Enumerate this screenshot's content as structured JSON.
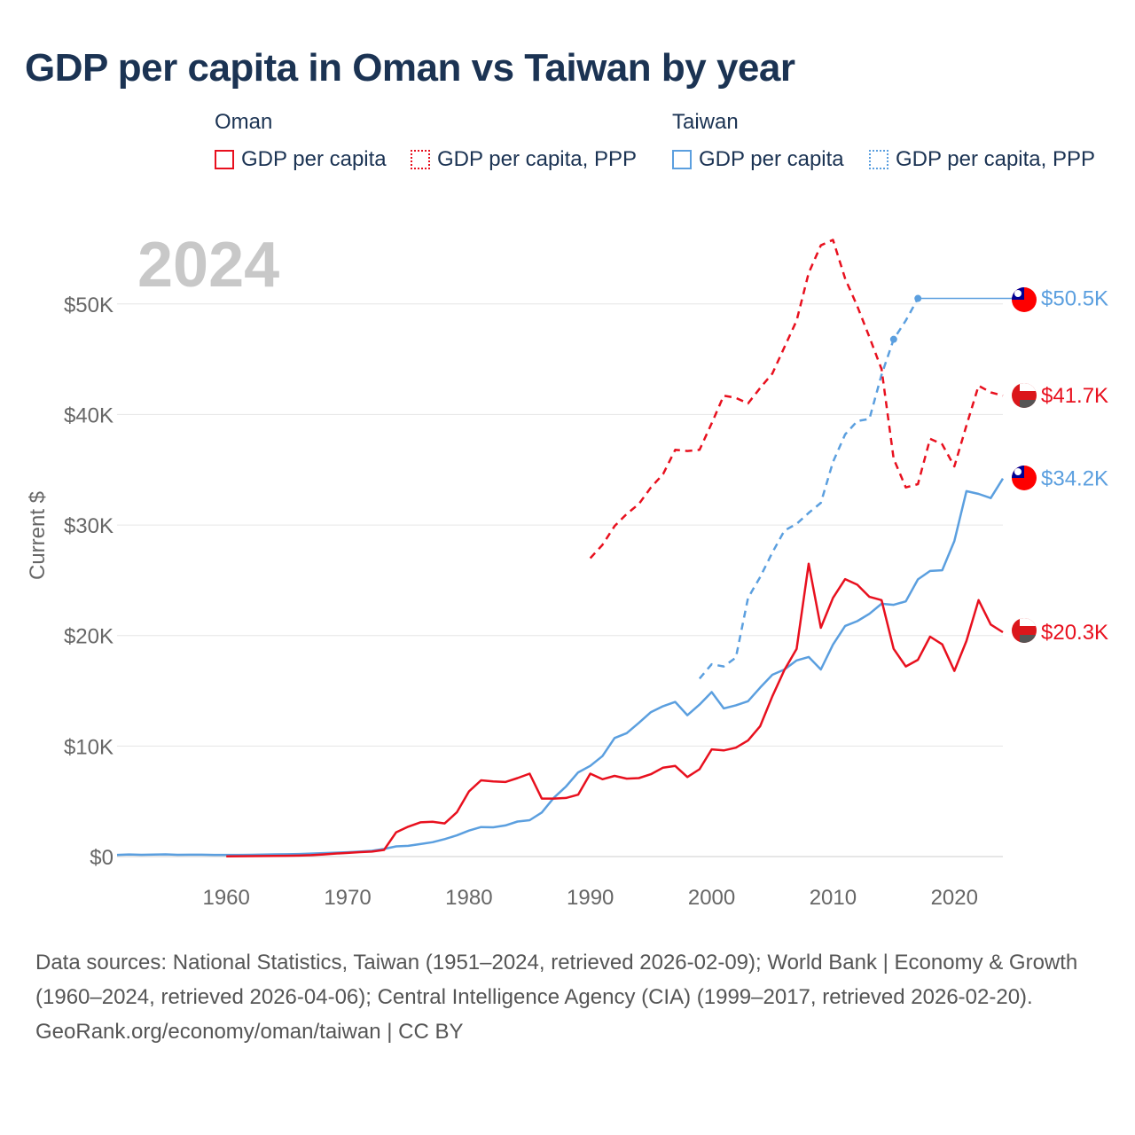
{
  "title": "GDP per capita in Oman vs Taiwan by year",
  "legend": {
    "groups": [
      {
        "name": "Oman",
        "color": "#e8101e",
        "items": [
          {
            "label": "GDP per capita",
            "style": "solid"
          },
          {
            "label": "GDP per capita, PPP",
            "style": "dotted"
          }
        ]
      },
      {
        "name": "Taiwan",
        "color": "#5b9fdf",
        "items": [
          {
            "label": "GDP per capita",
            "style": "solid"
          },
          {
            "label": "GDP per capita, PPP",
            "style": "dotted"
          }
        ]
      }
    ]
  },
  "year_label": "2024",
  "chart_data": {
    "type": "line",
    "title": "GDP per capita in Oman vs Taiwan by year",
    "xlabel": "",
    "ylabel": "Current $",
    "xlim": [
      1951,
      2024
    ],
    "ylim": [
      0,
      56000
    ],
    "x_ticks": [
      1960,
      1970,
      1980,
      1990,
      2000,
      2010,
      2020
    ],
    "x_tick_labels": [
      "1960",
      "1970",
      "1980",
      "1990",
      "2000",
      "2010",
      "2020"
    ],
    "y_ticks": [
      0,
      10000,
      20000,
      30000,
      40000,
      50000
    ],
    "y_tick_labels": [
      "$0",
      "$10K",
      "$20K",
      "$30K",
      "$40K",
      "$50K"
    ],
    "grid": true,
    "series": [
      {
        "name": "Taiwan GDP per capita",
        "country": "Taiwan",
        "color": "#5b9fdf",
        "dashed": false,
        "end_label": "$34.2K",
        "x": [
          1951,
          1952,
          1953,
          1954,
          1955,
          1956,
          1957,
          1958,
          1959,
          1960,
          1961,
          1962,
          1963,
          1964,
          1965,
          1966,
          1967,
          1968,
          1969,
          1970,
          1971,
          1972,
          1973,
          1974,
          1975,
          1976,
          1977,
          1978,
          1979,
          1980,
          1981,
          1982,
          1983,
          1984,
          1985,
          1986,
          1987,
          1988,
          1989,
          1990,
          1991,
          1992,
          1993,
          1994,
          1995,
          1996,
          1997,
          1998,
          1999,
          2000,
          2001,
          2002,
          2003,
          2004,
          2005,
          2006,
          2007,
          2008,
          2009,
          2010,
          2011,
          2012,
          2013,
          2014,
          2015,
          2016,
          2017,
          2018,
          2019,
          2020,
          2021,
          2022,
          2023,
          2024
        ],
        "y": [
          150,
          190,
          160,
          180,
          200,
          160,
          170,
          170,
          150,
          150,
          150,
          160,
          180,
          200,
          210,
          230,
          270,
          310,
          350,
          390,
          450,
          520,
          690,
          920,
          970,
          1130,
          1300,
          1580,
          1920,
          2350,
          2670,
          2650,
          2820,
          3170,
          3290,
          3990,
          5330,
          6340,
          7610,
          8210,
          9090,
          10730,
          11170,
          12100,
          13070,
          13610,
          13990,
          12790,
          13750,
          14880,
          13410,
          13690,
          14060,
          15290,
          16450,
          16930,
          17750,
          18060,
          16930,
          19180,
          20870,
          21300,
          21970,
          22870,
          22780,
          23090,
          25080,
          25840,
          25910,
          28550,
          33060,
          32810,
          32440,
          34200
        ]
      },
      {
        "name": "Taiwan GDP per capita, PPP",
        "country": "Taiwan",
        "color": "#5b9fdf",
        "dashed": true,
        "end_label": "$50.5K",
        "x": [
          1999,
          2000,
          2001,
          2002,
          2003,
          2004,
          2005,
          2006,
          2007,
          2008,
          2009,
          2010,
          2011,
          2012,
          2013,
          2014,
          2015,
          2016,
          2017
        ],
        "y": [
          16100,
          17400,
          17200,
          18000,
          23400,
          25300,
          27500,
          29500,
          30100,
          31100,
          32000,
          35700,
          38200,
          39400,
          39600,
          43600,
          46800,
          48500,
          50500
        ],
        "markers_at": [
          2015,
          2017
        ],
        "carry_forward_to": 2024
      },
      {
        "name": "Oman GDP per capita",
        "country": "Oman",
        "color": "#e8101e",
        "dashed": false,
        "end_label": "$20.3K",
        "x": [
          1960,
          1961,
          1962,
          1963,
          1964,
          1965,
          1966,
          1967,
          1968,
          1969,
          1970,
          1971,
          1972,
          1973,
          1974,
          1975,
          1976,
          1977,
          1978,
          1979,
          1980,
          1981,
          1982,
          1983,
          1984,
          1985,
          1986,
          1987,
          1988,
          1989,
          1990,
          1991,
          1992,
          1993,
          1994,
          1995,
          1996,
          1997,
          1998,
          1999,
          2000,
          2001,
          2002,
          2003,
          2004,
          2005,
          2006,
          2007,
          2008,
          2009,
          2010,
          2011,
          2012,
          2013,
          2014,
          2015,
          2016,
          2017,
          2018,
          2019,
          2020,
          2021,
          2022,
          2023,
          2024
        ],
        "y": [
          20,
          30,
          40,
          50,
          60,
          70,
          90,
          130,
          190,
          270,
          330,
          400,
          450,
          600,
          2200,
          2700,
          3100,
          3150,
          3000,
          4000,
          5900,
          6900,
          6800,
          6750,
          7100,
          7500,
          5250,
          5250,
          5300,
          5600,
          7500,
          7000,
          7300,
          7050,
          7100,
          7450,
          8050,
          8200,
          7200,
          7900,
          9700,
          9600,
          9850,
          10500,
          11800,
          14500,
          16900,
          18800,
          26500,
          20700,
          23400,
          25100,
          24600,
          23500,
          23200,
          18800,
          17200,
          17800,
          19900,
          19200,
          16800,
          19500,
          23200,
          21000,
          20300
        ]
      },
      {
        "name": "Oman GDP per capita, PPP",
        "country": "Oman",
        "color": "#e8101e",
        "dashed": true,
        "end_label": "$41.7K",
        "x": [
          1990,
          1991,
          1992,
          1993,
          1994,
          1995,
          1996,
          1997,
          1998,
          1999,
          2000,
          2001,
          2002,
          2003,
          2004,
          2005,
          2006,
          2007,
          2008,
          2009,
          2010,
          2011,
          2012,
          2013,
          2014,
          2015,
          2016,
          2017,
          2018,
          2019,
          2020,
          2021,
          2022,
          2023,
          2024
        ],
        "y": [
          27000,
          28200,
          29900,
          31000,
          31900,
          33400,
          34600,
          36800,
          36700,
          36800,
          39200,
          41700,
          41500,
          41000,
          42400,
          43700,
          46100,
          48500,
          52800,
          55300,
          55800,
          52300,
          49800,
          47000,
          44100,
          36000,
          33400,
          33700,
          37800,
          37300,
          35300,
          39000,
          42600,
          42000,
          41700
        ]
      }
    ]
  },
  "footer": {
    "sources": "Data sources: National Statistics, Taiwan (1951–2024, retrieved 2026-02-09); World Bank | Economy & Growth (1960–2024, retrieved 2026-04-06); Central Intelligence Agency (CIA) (1999–2017, retrieved 2026-02-20).",
    "credit": "GeoRank.org/economy/oman/taiwan | CC BY"
  }
}
